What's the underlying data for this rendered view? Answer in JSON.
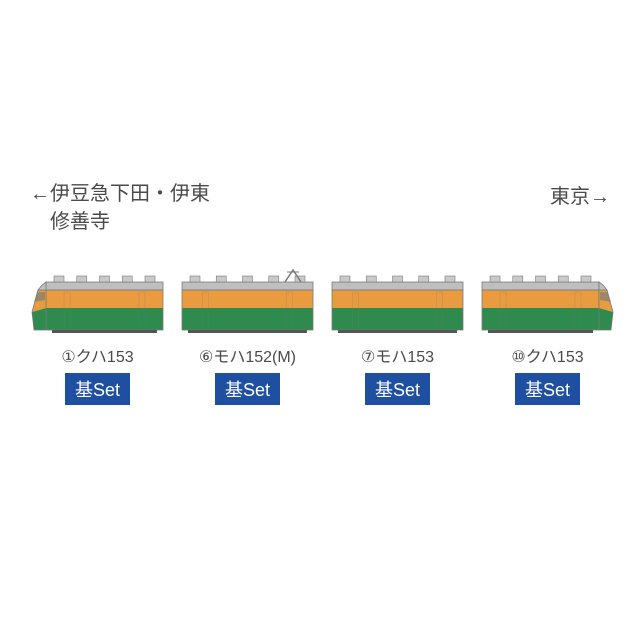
{
  "directions": {
    "left_line1": "←伊豆急下田・伊東",
    "left_line2": "　修善寺",
    "right": "東京→"
  },
  "train_colors": {
    "roof": "#bfbfbf",
    "orange": "#e89b3f",
    "green": "#2f8a4e",
    "outline": "#7a7a7a",
    "roof_box": "#c9c9c9",
    "window_blue": "#2b6ca3"
  },
  "badge": {
    "text": "基Set",
    "bg": "#1f4fa0",
    "fg": "#ffffff"
  },
  "label_color": "#4a4a4a",
  "cars": [
    {
      "num": "①",
      "name": "クハ153",
      "cab": "left",
      "panto": false
    },
    {
      "num": "⑥",
      "name": "モハ152(M)",
      "cab": "none",
      "panto": true
    },
    {
      "num": "⑦",
      "name": "モハ153",
      "cab": "none",
      "panto": false
    },
    {
      "num": "⑩",
      "name": "クハ153",
      "cab": "right",
      "panto": false
    }
  ]
}
